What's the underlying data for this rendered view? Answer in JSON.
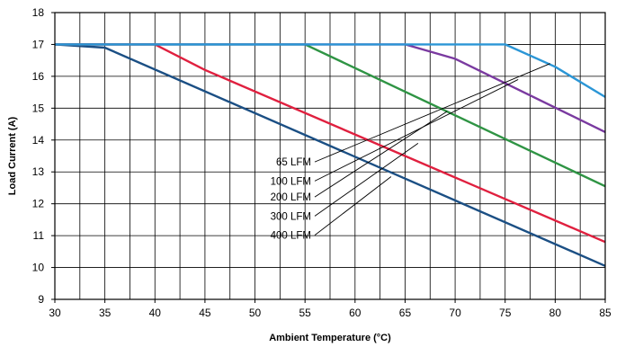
{
  "chart_data": {
    "type": "line",
    "title": "",
    "xlabel": "Ambient Temperature (°C)",
    "ylabel": "Load Current (A)",
    "xlim": [
      30,
      85
    ],
    "ylim": [
      9,
      18
    ],
    "xticks": [
      30,
      35,
      40,
      45,
      50,
      55,
      60,
      65,
      70,
      75,
      80,
      85
    ],
    "yticks": [
      9,
      10,
      11,
      12,
      13,
      14,
      15,
      16,
      17,
      18
    ],
    "grid": true,
    "legend": "none",
    "series": [
      {
        "color": "#1b4f84",
        "points": [
          [
            30,
            17
          ],
          [
            35,
            16.9
          ],
          [
            85,
            10.05
          ]
        ]
      },
      {
        "color": "#e0203f",
        "points": [
          [
            30,
            17
          ],
          [
            40,
            17
          ],
          [
            45,
            16.2
          ],
          [
            85,
            10.8
          ]
        ]
      },
      {
        "color": "#2f9444",
        "points": [
          [
            30,
            17
          ],
          [
            55,
            17
          ],
          [
            85,
            12.55
          ]
        ]
      },
      {
        "color": "#7a3aa0",
        "points": [
          [
            30,
            17
          ],
          [
            65,
            17
          ],
          [
            70,
            16.55
          ],
          [
            85,
            14.25
          ]
        ]
      },
      {
        "color": "#2b96d6",
        "points": [
          [
            30,
            17
          ],
          [
            75,
            17
          ],
          [
            80,
            16.3
          ],
          [
            85,
            15.35
          ]
        ]
      }
    ],
    "annotations": [
      {
        "label": "65 LFM",
        "y": 13.2,
        "target": [
          79.5,
          16.4
        ]
      },
      {
        "label": "100 LFM",
        "y": 12.6,
        "target": [
          76.3,
          15.9
        ]
      },
      {
        "label": "200 LFM",
        "y": 12.1,
        "target": [
          69.2,
          14.9
        ]
      },
      {
        "label": "300 LFM",
        "y": 11.5,
        "target": [
          66.3,
          13.9
        ]
      },
      {
        "label": "400 LFM",
        "y": 10.9,
        "target": [
          63.6,
          12.85
        ]
      }
    ]
  }
}
